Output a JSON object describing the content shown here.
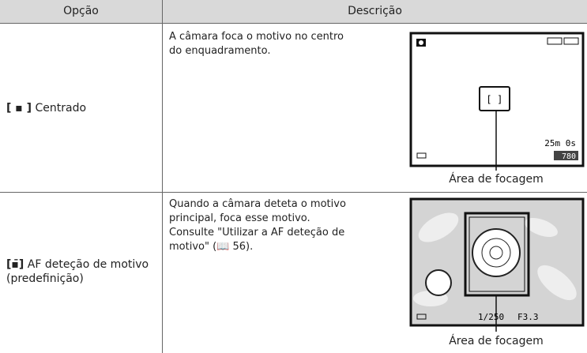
{
  "header": {
    "columns": [
      "Opção",
      "Descrição"
    ]
  },
  "rows": [
    {
      "option": "Centrado",
      "description": "A câmara foca o motivo no centro do enquadramento.",
      "screen": {
        "remaining": "25m 0s",
        "shots": "780"
      },
      "caption": "Área de focagem"
    },
    {
      "option": "AF deteção de motivo (predefinição)",
      "description": "Quando a câmara deteta o motivo principal, foca esse motivo.",
      "reference_before": "Consulte \"Utilizar a AF deteção de motivo\" (",
      "reference_after": " 56).",
      "screen": {
        "shutter": "1/250",
        "aperture": "F3.3"
      },
      "caption": "Área de focagem"
    }
  ]
}
